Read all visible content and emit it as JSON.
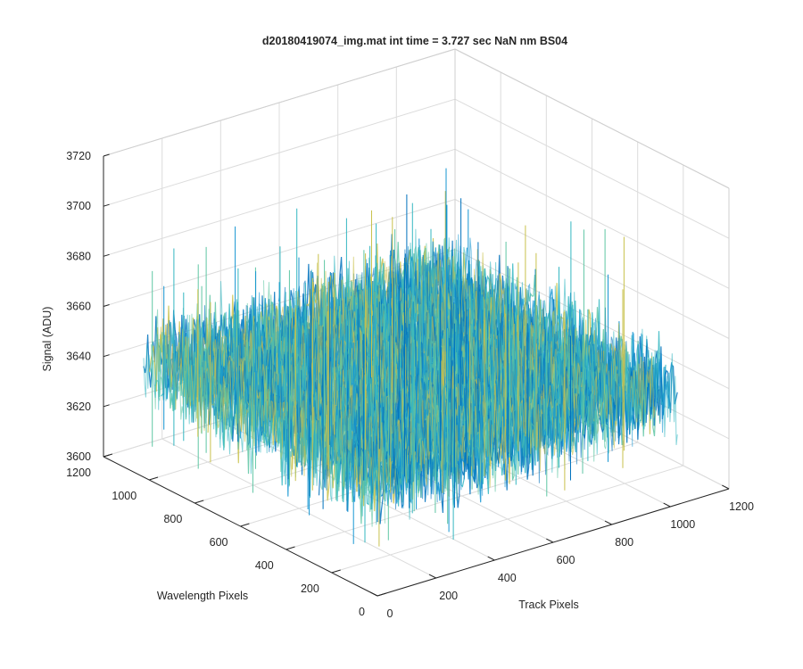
{
  "chart_data": {
    "type": "surface",
    "title": "d20180419074_img.mat int time = 3.727 sec  NaN nm BS04",
    "xlabel": "Track Pixels",
    "ylabel": "Wavelength Pixels",
    "zlabel": "Signal (ADU)",
    "xlim": [
      0,
      1200
    ],
    "ylim": [
      0,
      1200
    ],
    "zlim": [
      3600,
      3720
    ],
    "xticks": [
      "0",
      "200",
      "400",
      "600",
      "800",
      "1000",
      "1200"
    ],
    "yticks": [
      "0",
      "200",
      "400",
      "600",
      "800",
      "1000",
      "1200"
    ],
    "zticks": [
      "3600",
      "3620",
      "3640",
      "3660",
      "3680",
      "3700",
      "3720"
    ],
    "data_extent": {
      "x": [
        0,
        1024
      ],
      "y": [
        0,
        1024
      ]
    },
    "signal_mean": 3645,
    "signal_noise_range": [
      3618,
      3700
    ],
    "grid": true,
    "colormap": [
      "#0072bd",
      "#1696d2",
      "#35b7c2",
      "#5fc6a4",
      "#c9c24d"
    ]
  }
}
